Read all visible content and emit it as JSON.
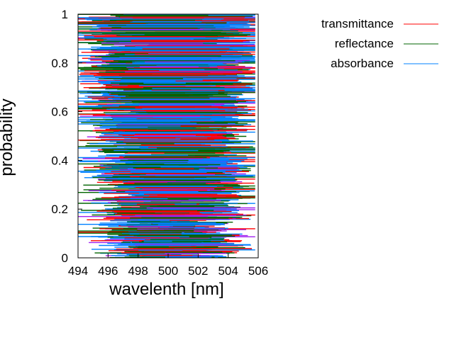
{
  "chart_data": {
    "type": "scatter",
    "title": "",
    "xlabel": "wavelenth [nm]",
    "ylabel": "probability",
    "xlim": [
      494,
      506
    ],
    "ylim": [
      0,
      1
    ],
    "x_ticks": [
      "494",
      "496",
      "498",
      "500",
      "502",
      "504",
      "506"
    ],
    "y_ticks": [
      "0",
      "0.2",
      "0.4",
      "0.6",
      "0.8",
      "1"
    ],
    "grid": false,
    "legend_position": "top-right outside",
    "series": [
      {
        "name": "transmittance",
        "color": "#ff0000",
        "marker": "horizontal-segment",
        "x_range": [
          494,
          506
        ],
        "y_range": [
          0,
          1
        ],
        "distribution": "dense, ~uniform in probability"
      },
      {
        "name": "reflectance",
        "color": "#006400",
        "marker": "horizontal-segment",
        "x_range": [
          494,
          506
        ],
        "y_range": [
          0,
          1
        ],
        "distribution": "dense, ~uniform in probability"
      },
      {
        "name": "absorbance",
        "color": "#0080ff",
        "marker": "horizontal-segment",
        "x_range": [
          494,
          506
        ],
        "y_range": [
          0,
          1
        ],
        "distribution": "dense, ~uniform in probability"
      }
    ],
    "extra_color": "#a020f0"
  }
}
